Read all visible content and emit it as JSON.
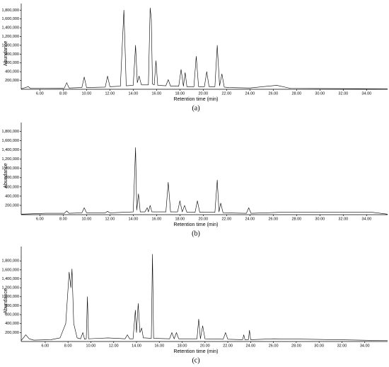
{
  "chart_data": [
    {
      "type": "line",
      "caption": "(a)",
      "y_label": "Abundance",
      "x_label": "Retention time (min)",
      "color": "#000000",
      "xlim": [
        4.4,
        35.8
      ],
      "ylim": [
        0,
        1950000
      ],
      "xticks": [
        {
          "value": 6,
          "label": "6.00"
        },
        {
          "value": 8,
          "label": "8.00"
        },
        {
          "value": 10,
          "label": "10.00"
        },
        {
          "value": 12,
          "label": "12.00"
        },
        {
          "value": 14,
          "label": "14.00"
        },
        {
          "value": 16,
          "label": "16.00"
        },
        {
          "value": 18,
          "label": "18.00"
        },
        {
          "value": 20,
          "label": "20.00"
        },
        {
          "value": 22,
          "label": "22.00"
        },
        {
          "value": 24,
          "label": "24.00"
        },
        {
          "value": 26,
          "label": "26.00"
        },
        {
          "value": 28,
          "label": "28.00"
        },
        {
          "value": 30,
          "label": "30.00"
        },
        {
          "value": 32,
          "label": "32.00"
        },
        {
          "value": 34,
          "label": "34.00"
        }
      ],
      "yticks": [
        {
          "value": 200000,
          "label": "200,000"
        },
        {
          "value": 400000,
          "label": "400,000"
        },
        {
          "value": 600000,
          "label": "600,000"
        },
        {
          "value": 800000,
          "label": "800,000"
        },
        {
          "value": 1000000,
          "label": "1,000,000"
        },
        {
          "value": 1200000,
          "label": "1,200,000"
        },
        {
          "value": 1400000,
          "label": "1,400,000"
        },
        {
          "value": 1600000,
          "label": "1,600,000"
        },
        {
          "value": 1800000,
          "label": "1,800,000"
        }
      ],
      "x": [
        4.4,
        5.0,
        5.2,
        6.5,
        8.1,
        8.3,
        8.5,
        9.6,
        9.8,
        10.0,
        11.6,
        11.8,
        12.0,
        12.9,
        13.2,
        13.4,
        14.0,
        14.2,
        14.35,
        14.5,
        14.7,
        15.3,
        15.45,
        15.55,
        15.65,
        15.8,
        15.95,
        16.1,
        16.8,
        17.0,
        17.2,
        17.9,
        18.1,
        18.3,
        18.45,
        18.6,
        19.2,
        19.4,
        19.6,
        20.1,
        20.3,
        20.5,
        21.0,
        21.2,
        21.4,
        21.6,
        21.8,
        22.2,
        24.0,
        26.3,
        27.5,
        35.8
      ],
      "values": [
        10000,
        60000,
        20000,
        20000,
        30000,
        150000,
        30000,
        40000,
        280000,
        40000,
        50000,
        300000,
        60000,
        70000,
        1800000,
        80000,
        90000,
        1000000,
        150000,
        300000,
        100000,
        100000,
        1850000,
        1600000,
        120000,
        100000,
        650000,
        90000,
        80000,
        220000,
        70000,
        70000,
        450000,
        70000,
        380000,
        60000,
        60000,
        750000,
        60000,
        60000,
        400000,
        60000,
        60000,
        1000000,
        80000,
        350000,
        50000,
        40000,
        30000,
        90000,
        20000,
        10000
      ]
    },
    {
      "type": "line",
      "caption": "(b)",
      "y_label": "Abundance",
      "x_label": "Retention time (min)",
      "color": "#000000",
      "xlim": [
        4.4,
        35.8
      ],
      "ylim": [
        0,
        1990000
      ],
      "xticks": [
        {
          "value": 6,
          "label": "6.00"
        },
        {
          "value": 8,
          "label": "8.00"
        },
        {
          "value": 10,
          "label": "10.00"
        },
        {
          "value": 12,
          "label": "12.00"
        },
        {
          "value": 14,
          "label": "14.00"
        },
        {
          "value": 16,
          "label": "16.00"
        },
        {
          "value": 18,
          "label": "18.00"
        },
        {
          "value": 20,
          "label": "20.00"
        },
        {
          "value": 22,
          "label": "22.00"
        },
        {
          "value": 24,
          "label": "24.00"
        },
        {
          "value": 26,
          "label": "26.00"
        },
        {
          "value": 28,
          "label": "28.00"
        },
        {
          "value": 30,
          "label": "30.00"
        },
        {
          "value": 32,
          "label": "32.00"
        },
        {
          "value": 34,
          "label": "34.00"
        }
      ],
      "yticks": [
        {
          "value": 200000,
          "label": "200,000"
        },
        {
          "value": 400000,
          "label": "400,000"
        },
        {
          "value": 600000,
          "label": "600,000"
        },
        {
          "value": 800000,
          "label": "800,000"
        },
        {
          "value": 1000000,
          "label": "1,000,000"
        },
        {
          "value": 1200000,
          "label": "1,200,000"
        },
        {
          "value": 1400000,
          "label": "1,400,000"
        },
        {
          "value": 1600000,
          "label": "1,600,000"
        },
        {
          "value": 1800000,
          "label": "1,800,000"
        }
      ],
      "x": [
        4.4,
        6.5,
        8.1,
        8.3,
        8.5,
        9.6,
        9.8,
        10.0,
        11.6,
        11.8,
        12.0,
        14.0,
        14.2,
        14.3,
        14.45,
        14.6,
        15.0,
        15.2,
        15.3,
        15.45,
        15.6,
        16.8,
        17.0,
        17.2,
        17.8,
        18.0,
        18.2,
        18.4,
        18.6,
        19.3,
        19.5,
        19.7,
        21.0,
        21.2,
        21.35,
        21.5,
        21.7,
        23.7,
        23.9,
        24.1,
        26.5,
        34.5,
        35.8
      ],
      "values": [
        10000,
        30000,
        30000,
        80000,
        30000,
        40000,
        150000,
        40000,
        40000,
        70000,
        40000,
        60000,
        1450000,
        100000,
        450000,
        60000,
        60000,
        150000,
        60000,
        200000,
        60000,
        60000,
        700000,
        60000,
        60000,
        300000,
        60000,
        200000,
        50000,
        50000,
        300000,
        50000,
        50000,
        750000,
        60000,
        250000,
        40000,
        30000,
        150000,
        30000,
        50000,
        50000,
        10000
      ]
    },
    {
      "type": "line",
      "caption": "(c)",
      "y_label": "Abundance",
      "x_label": "Retention time (min)",
      "color": "#000000",
      "xlim": [
        3.9,
        36
      ],
      "ylim": [
        0,
        2120000
      ],
      "xticks": [
        {
          "value": 6,
          "label": "6.00"
        },
        {
          "value": 8,
          "label": "8.00"
        },
        {
          "value": 10,
          "label": "10.00"
        },
        {
          "value": 12,
          "label": "12.00"
        },
        {
          "value": 14,
          "label": "14.00"
        },
        {
          "value": 16,
          "label": "16.00"
        },
        {
          "value": 18,
          "label": "18.00"
        },
        {
          "value": 20,
          "label": "20.00"
        },
        {
          "value": 22,
          "label": "22.00"
        },
        {
          "value": 24,
          "label": "24.00"
        },
        {
          "value": 26,
          "label": "26.00"
        },
        {
          "value": 28,
          "label": "28.00"
        },
        {
          "value": 30,
          "label": "30.00"
        },
        {
          "value": 32,
          "label": "32.00"
        },
        {
          "value": 34,
          "label": "34.00"
        }
      ],
      "yticks": [
        {
          "value": 200000,
          "label": "200,000"
        },
        {
          "value": 400000,
          "label": "400,000"
        },
        {
          "value": 600000,
          "label": "600,000"
        },
        {
          "value": 800000,
          "label": "800,000"
        },
        {
          "value": 1000000,
          "label": "1,000,000"
        },
        {
          "value": 1200000,
          "label": "1,200,000"
        },
        {
          "value": 1400000,
          "label": "1,400,000"
        },
        {
          "value": 1600000,
          "label": "1,600,000"
        },
        {
          "value": 1800000,
          "label": "1,800,000"
        }
      ],
      "x": [
        3.9,
        4.3,
        4.6,
        5.0,
        6.5,
        7.3,
        7.8,
        8.1,
        8.25,
        8.35,
        8.5,
        8.8,
        9.1,
        9.3,
        9.45,
        9.6,
        9.7,
        9.8,
        11.5,
        13.0,
        13.2,
        13.4,
        13.7,
        13.9,
        14.0,
        14.15,
        14.3,
        14.45,
        14.6,
        14.75,
        15.3,
        15.4,
        15.5,
        16.9,
        17.1,
        17.3,
        17.5,
        17.7,
        19.3,
        19.45,
        19.6,
        19.8,
        20.0,
        21.6,
        21.8,
        22.0,
        23.3,
        23.4,
        23.5,
        23.8,
        23.9,
        24.0,
        26.0,
        29.0,
        36.0
      ],
      "values": [
        20000,
        150000,
        60000,
        30000,
        40000,
        80000,
        400000,
        1550000,
        1200000,
        1620000,
        400000,
        80000,
        60000,
        200000,
        50000,
        60000,
        1000000,
        60000,
        80000,
        60000,
        150000,
        60000,
        60000,
        700000,
        200000,
        850000,
        200000,
        300000,
        80000,
        80000,
        70000,
        1950000,
        70000,
        60000,
        200000,
        60000,
        200000,
        60000,
        60000,
        500000,
        60000,
        350000,
        60000,
        50000,
        200000,
        50000,
        40000,
        150000,
        40000,
        40000,
        250000,
        40000,
        60000,
        50000,
        20000
      ]
    }
  ]
}
